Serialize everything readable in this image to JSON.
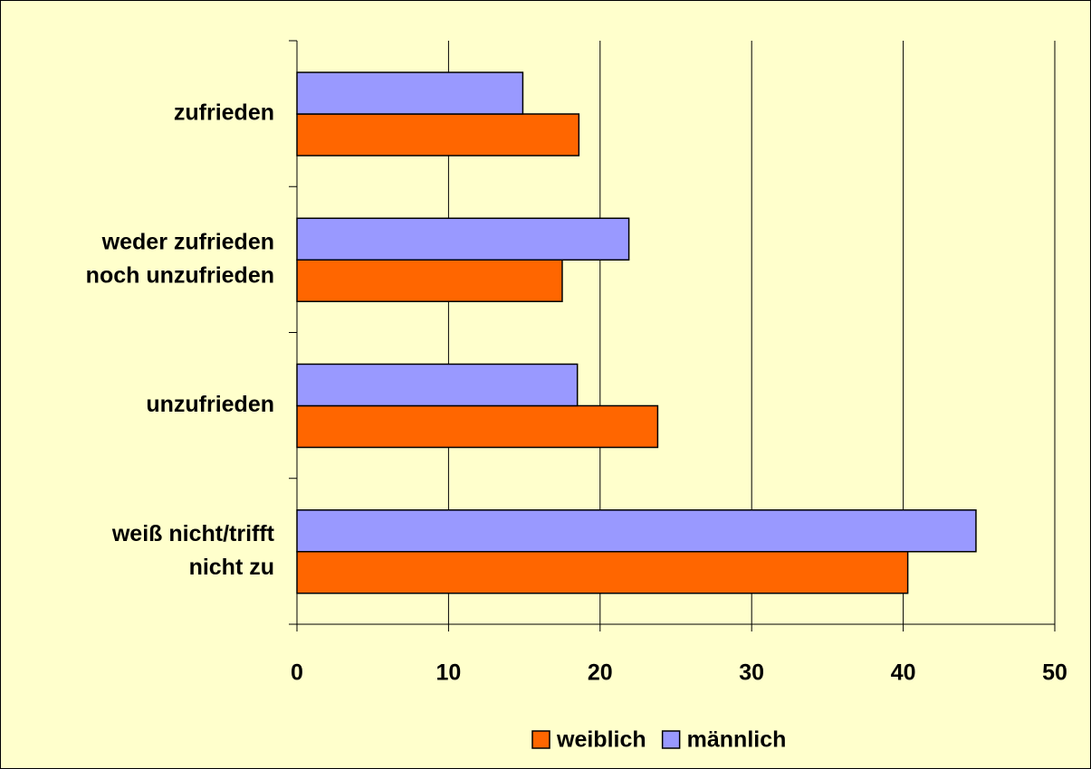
{
  "chart_data": {
    "type": "hbar",
    "categories": [
      [
        "zufrieden"
      ],
      [
        "weder zufrieden",
        "noch unzufrieden"
      ],
      [
        "unzufrieden"
      ],
      [
        "weiß nicht/trifft",
        "nicht zu"
      ]
    ],
    "series": [
      {
        "name": "weiblich",
        "color": "#ff6600",
        "values": [
          18.6,
          17.5,
          23.8,
          40.3
        ]
      },
      {
        "name": "männlich",
        "color": "#9999ff",
        "values": [
          14.9,
          21.9,
          18.5,
          44.8
        ]
      }
    ],
    "xlim": [
      0,
      50
    ],
    "xticks": [
      0,
      10,
      20,
      30,
      40,
      50
    ],
    "grid": true,
    "legend": "bottom"
  }
}
